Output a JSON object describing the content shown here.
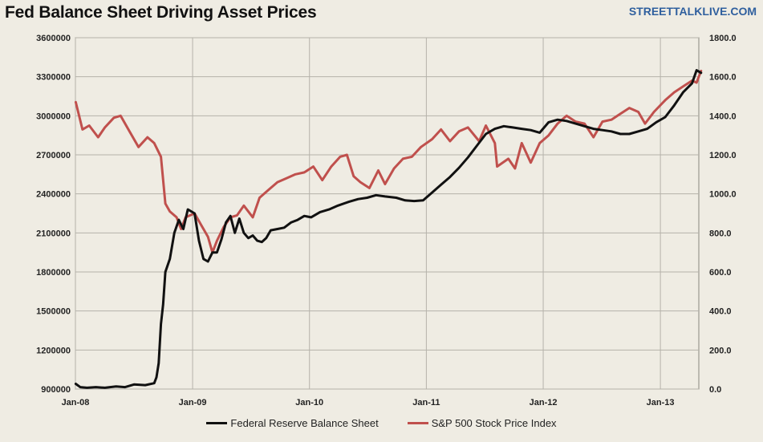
{
  "header": {
    "title": "Fed Balance Sheet Driving Asset Prices",
    "brand": "STREETTALKLIVE.COM"
  },
  "colors": {
    "fed": "#111111",
    "spx": "#c0504d",
    "grid": "#b5b2aa",
    "background": "#efece3"
  },
  "chart_data": {
    "type": "line",
    "title": "Fed Balance Sheet Driving Asset Prices",
    "x_ticks": [
      "Jan-08",
      "Jan-09",
      "Jan-10",
      "Jan-11",
      "Jan-12",
      "Jan-13"
    ],
    "x_range": [
      "2008-01",
      "2013-05"
    ],
    "y_left": {
      "ticks": [
        "900000",
        "1200000",
        "1500000",
        "1800000",
        "2100000",
        "2400000",
        "2700000",
        "3000000",
        "3300000",
        "3600000"
      ],
      "range": [
        900000,
        3600000
      ]
    },
    "y_right": {
      "ticks": [
        "0.0",
        "200.0",
        "400.0",
        "600.0",
        "800.0",
        "1000.0",
        "1200.0",
        "1400.0",
        "1600.0",
        "1800.0"
      ],
      "range": [
        0,
        1800
      ]
    },
    "grid": "vertical at x ticks, horizontal at y ticks",
    "legend_position": "bottom",
    "series": [
      {
        "name": "Federal Reserve Balance Sheet",
        "axis": "left",
        "points": [
          [
            "2008-01-02",
            940000
          ],
          [
            "2008-01-16",
            915000
          ],
          [
            "2008-02-06",
            910000
          ],
          [
            "2008-03-05",
            915000
          ],
          [
            "2008-04-02",
            910000
          ],
          [
            "2008-05-07",
            920000
          ],
          [
            "2008-06-04",
            915000
          ],
          [
            "2008-07-02",
            935000
          ],
          [
            "2008-08-06",
            930000
          ],
          [
            "2008-09-03",
            945000
          ],
          [
            "2008-09-10",
            990000
          ],
          [
            "2008-09-17",
            1100000
          ],
          [
            "2008-09-24",
            1400000
          ],
          [
            "2008-10-01",
            1550000
          ],
          [
            "2008-10-08",
            1800000
          ],
          [
            "2008-10-22",
            1900000
          ],
          [
            "2008-11-05",
            2100000
          ],
          [
            "2008-11-19",
            2200000
          ],
          [
            "2008-12-03",
            2130000
          ],
          [
            "2008-12-17",
            2280000
          ],
          [
            "2009-01-07",
            2250000
          ],
          [
            "2009-01-21",
            2040000
          ],
          [
            "2009-02-04",
            1900000
          ],
          [
            "2009-02-18",
            1880000
          ],
          [
            "2009-03-04",
            1950000
          ],
          [
            "2009-03-18",
            1950000
          ],
          [
            "2009-04-01",
            2050000
          ],
          [
            "2009-04-15",
            2180000
          ],
          [
            "2009-04-29",
            2230000
          ],
          [
            "2009-05-13",
            2100000
          ],
          [
            "2009-05-27",
            2210000
          ],
          [
            "2009-06-10",
            2100000
          ],
          [
            "2009-06-24",
            2060000
          ],
          [
            "2009-07-08",
            2080000
          ],
          [
            "2009-07-22",
            2040000
          ],
          [
            "2009-08-05",
            2030000
          ],
          [
            "2009-08-19",
            2060000
          ],
          [
            "2009-09-02",
            2120000
          ],
          [
            "2009-09-23",
            2130000
          ],
          [
            "2009-10-14",
            2140000
          ],
          [
            "2009-11-04",
            2180000
          ],
          [
            "2009-11-25",
            2200000
          ],
          [
            "2009-12-16",
            2230000
          ],
          [
            "2010-01-06",
            2220000
          ],
          [
            "2010-02-03",
            2260000
          ],
          [
            "2010-03-03",
            2280000
          ],
          [
            "2010-03-31",
            2310000
          ],
          [
            "2010-05-05",
            2340000
          ],
          [
            "2010-06-02",
            2360000
          ],
          [
            "2010-06-30",
            2370000
          ],
          [
            "2010-07-28",
            2390000
          ],
          [
            "2010-08-25",
            2380000
          ],
          [
            "2010-09-29",
            2370000
          ],
          [
            "2010-10-27",
            2350000
          ],
          [
            "2010-11-24",
            2345000
          ],
          [
            "2010-12-22",
            2350000
          ],
          [
            "2011-01-19",
            2410000
          ],
          [
            "2011-02-16",
            2470000
          ],
          [
            "2011-03-16",
            2530000
          ],
          [
            "2011-04-13",
            2600000
          ],
          [
            "2011-05-11",
            2680000
          ],
          [
            "2011-06-08",
            2770000
          ],
          [
            "2011-07-06",
            2860000
          ],
          [
            "2011-08-03",
            2900000
          ],
          [
            "2011-08-31",
            2920000
          ],
          [
            "2011-09-28",
            2910000
          ],
          [
            "2011-10-26",
            2900000
          ],
          [
            "2011-11-23",
            2890000
          ],
          [
            "2011-12-21",
            2870000
          ],
          [
            "2012-01-18",
            2950000
          ],
          [
            "2012-02-15",
            2970000
          ],
          [
            "2012-03-14",
            2960000
          ],
          [
            "2012-04-11",
            2940000
          ],
          [
            "2012-05-09",
            2920000
          ],
          [
            "2012-06-06",
            2900000
          ],
          [
            "2012-07-04",
            2890000
          ],
          [
            "2012-08-01",
            2880000
          ],
          [
            "2012-08-29",
            2860000
          ],
          [
            "2012-09-26",
            2860000
          ],
          [
            "2012-10-24",
            2880000
          ],
          [
            "2012-11-21",
            2900000
          ],
          [
            "2012-12-19",
            2950000
          ],
          [
            "2013-01-16",
            2990000
          ],
          [
            "2013-02-13",
            3080000
          ],
          [
            "2013-03-13",
            3180000
          ],
          [
            "2013-04-10",
            3250000
          ],
          [
            "2013-04-24",
            3350000
          ],
          [
            "2013-05-08",
            3330000
          ]
        ]
      },
      {
        "name": "S&P 500 Stock Price Index",
        "axis": "right",
        "points": [
          [
            "2008-01-02",
            1470
          ],
          [
            "2008-01-23",
            1330
          ],
          [
            "2008-02-13",
            1350
          ],
          [
            "2008-03-12",
            1290
          ],
          [
            "2008-04-02",
            1340
          ],
          [
            "2008-04-30",
            1390
          ],
          [
            "2008-05-21",
            1400
          ],
          [
            "2008-06-18",
            1320
          ],
          [
            "2008-07-16",
            1240
          ],
          [
            "2008-08-13",
            1290
          ],
          [
            "2008-09-03",
            1260
          ],
          [
            "2008-09-24",
            1190
          ],
          [
            "2008-10-08",
            950
          ],
          [
            "2008-10-22",
            910
          ],
          [
            "2008-11-12",
            880
          ],
          [
            "2008-11-26",
            820
          ],
          [
            "2008-12-10",
            880
          ],
          [
            "2009-01-07",
            900
          ],
          [
            "2009-01-28",
            840
          ],
          [
            "2009-02-18",
            780
          ],
          [
            "2009-03-04",
            700
          ],
          [
            "2009-03-18",
            760
          ],
          [
            "2009-04-08",
            830
          ],
          [
            "2009-04-29",
            880
          ],
          [
            "2009-05-20",
            890
          ],
          [
            "2009-06-10",
            940
          ],
          [
            "2009-07-08",
            880
          ],
          [
            "2009-07-29",
            980
          ],
          [
            "2009-08-26",
            1020
          ],
          [
            "2009-09-23",
            1060
          ],
          [
            "2009-10-21",
            1080
          ],
          [
            "2009-11-18",
            1100
          ],
          [
            "2009-12-16",
            1110
          ],
          [
            "2010-01-13",
            1140
          ],
          [
            "2010-02-10",
            1070
          ],
          [
            "2010-03-10",
            1140
          ],
          [
            "2010-04-07",
            1190
          ],
          [
            "2010-04-28",
            1200
          ],
          [
            "2010-05-19",
            1090
          ],
          [
            "2010-06-09",
            1060
          ],
          [
            "2010-07-07",
            1030
          ],
          [
            "2010-08-04",
            1120
          ],
          [
            "2010-08-25",
            1050
          ],
          [
            "2010-09-22",
            1130
          ],
          [
            "2010-10-20",
            1180
          ],
          [
            "2010-11-17",
            1190
          ],
          [
            "2010-12-15",
            1240
          ],
          [
            "2011-01-19",
            1280
          ],
          [
            "2011-02-16",
            1330
          ],
          [
            "2011-03-16",
            1270
          ],
          [
            "2011-04-13",
            1320
          ],
          [
            "2011-05-11",
            1340
          ],
          [
            "2011-06-15",
            1270
          ],
          [
            "2011-07-06",
            1350
          ],
          [
            "2011-08-03",
            1260
          ],
          [
            "2011-08-10",
            1140
          ],
          [
            "2011-09-14",
            1180
          ],
          [
            "2011-10-05",
            1130
          ],
          [
            "2011-10-26",
            1260
          ],
          [
            "2011-11-23",
            1160
          ],
          [
            "2011-12-21",
            1260
          ],
          [
            "2012-01-18",
            1300
          ],
          [
            "2012-02-15",
            1360
          ],
          [
            "2012-03-14",
            1400
          ],
          [
            "2012-04-11",
            1370
          ],
          [
            "2012-05-09",
            1360
          ],
          [
            "2012-06-06",
            1290
          ],
          [
            "2012-07-04",
            1370
          ],
          [
            "2012-08-01",
            1380
          ],
          [
            "2012-08-29",
            1410
          ],
          [
            "2012-09-26",
            1440
          ],
          [
            "2012-10-24",
            1420
          ],
          [
            "2012-11-14",
            1360
          ],
          [
            "2012-12-12",
            1420
          ],
          [
            "2013-01-16",
            1480
          ],
          [
            "2013-02-13",
            1520
          ],
          [
            "2013-03-13",
            1550
          ],
          [
            "2013-04-10",
            1580
          ],
          [
            "2013-04-24",
            1570
          ],
          [
            "2013-05-08",
            1630
          ]
        ]
      }
    ]
  }
}
